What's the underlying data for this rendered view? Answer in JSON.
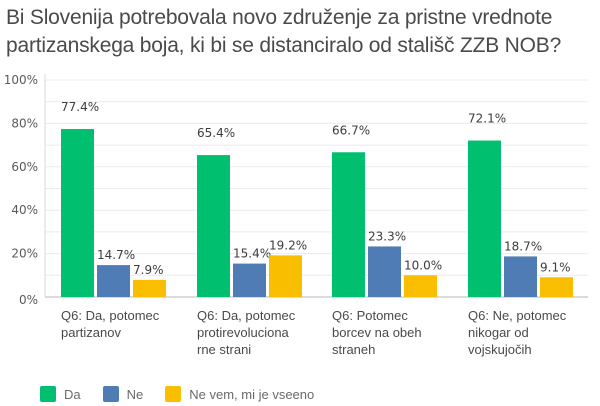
{
  "chart_data": {
    "type": "bar",
    "title": "Bi Slovenija potrebovala novo združenje za pristne vrednote partizanskega boja, ki bi se distanciralo od stališč ZZB NOB?",
    "xlabel": "",
    "ylabel": "",
    "ylim": [
      0,
      100
    ],
    "yticks": [
      "0%",
      "20%",
      "40%",
      "60%",
      "80%",
      "100%"
    ],
    "grid": true,
    "legend_position": "bottom-left",
    "categories": [
      "Q6: Da, potomec partizanov",
      "Q6: Da, potomec protirevoluciona rne strani",
      "Q6: Potomec borcev na obeh straneh",
      "Q6: Ne, potomec nikogar od vojskujočih"
    ],
    "category_lines": [
      [
        "Q6: Da, potomec",
        "partizanov"
      ],
      [
        "Q6: Da, potomec",
        "protirevoluciona",
        "rne strani"
      ],
      [
        "Q6: Potomec",
        "borcev na obeh",
        "straneh"
      ],
      [
        "Q6: Ne, potomec",
        "nikogar od",
        "vojskujočih"
      ]
    ],
    "series": [
      {
        "name": "Da",
        "color": "#00bf6f",
        "values": [
          77.4,
          65.4,
          66.7,
          72.1
        ],
        "labels": [
          "77.4%",
          "65.4%",
          "66.7%",
          "72.1%"
        ]
      },
      {
        "name": "Ne",
        "color": "#507cb6",
        "values": [
          14.7,
          15.4,
          23.3,
          18.7
        ],
        "labels": [
          "14.7%",
          "15.4%",
          "23.3%",
          "18.7%"
        ]
      },
      {
        "name": "Ne vem, mi je vseeno",
        "color": "#f9be00",
        "values": [
          7.9,
          19.2,
          10.0,
          9.1
        ],
        "labels": [
          "7.9%",
          "19.2%",
          "10.0%",
          "9.1%"
        ]
      }
    ]
  }
}
